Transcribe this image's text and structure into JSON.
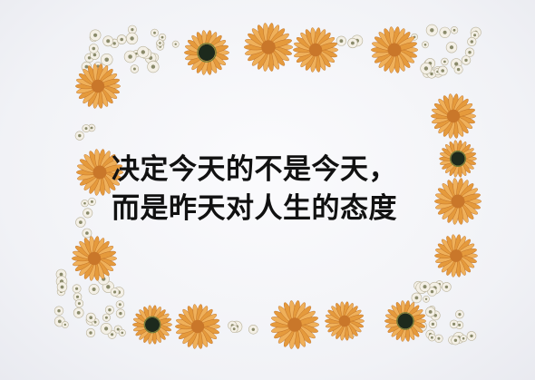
{
  "quote": {
    "line1": "决定今天的不是今天，",
    "line2": "而是昨天对人生的态度"
  },
  "palette": {
    "background": "#f1f2f6",
    "orange_petal": "#e59a3c",
    "orange_center": "#c9772a",
    "dark_center": "#1d2a1d",
    "small_white": "#f4f0e6",
    "text": "#111111"
  },
  "decor": {
    "border_icon": "flower-icon",
    "cluster_icon": "white-blossom-icon"
  }
}
